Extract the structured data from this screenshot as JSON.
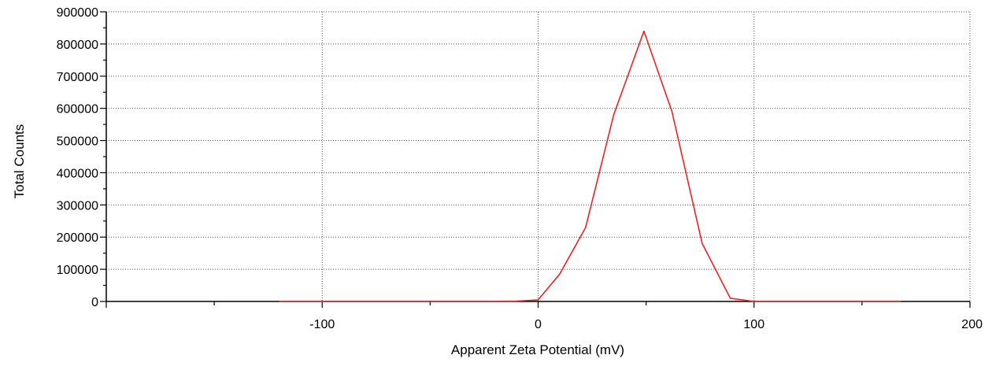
{
  "chart_data": {
    "type": "line",
    "title": "",
    "xlabel": "Apparent Zeta Potential  (mV)",
    "ylabel": "Total Counts",
    "xlim": [
      -200,
      200
    ],
    "ylim": [
      0,
      900000
    ],
    "xticks": [
      -100,
      0,
      100,
      200
    ],
    "xtick_labels": [
      "-100",
      "0",
      "100",
      "200"
    ],
    "yticks": [
      0,
      100000,
      200000,
      300000,
      400000,
      500000,
      600000,
      700000,
      800000,
      900000
    ],
    "ytick_labels": [
      "0",
      "100000",
      "200000",
      "300000",
      "400000",
      "500000",
      "600000",
      "700000",
      "800000",
      "900000"
    ],
    "grid": true,
    "series": [
      {
        "color": "#ee2222",
        "x": [
          -120,
          -100,
          -50,
          -20,
          -10,
          0,
          10,
          22,
          35,
          49,
          62,
          76,
          89,
          100,
          120,
          168
        ],
        "y": [
          0,
          0,
          0,
          0,
          1000,
          5000,
          85000,
          230000,
          580000,
          840000,
          590000,
          180000,
          10000,
          0,
          0,
          0
        ]
      }
    ]
  }
}
